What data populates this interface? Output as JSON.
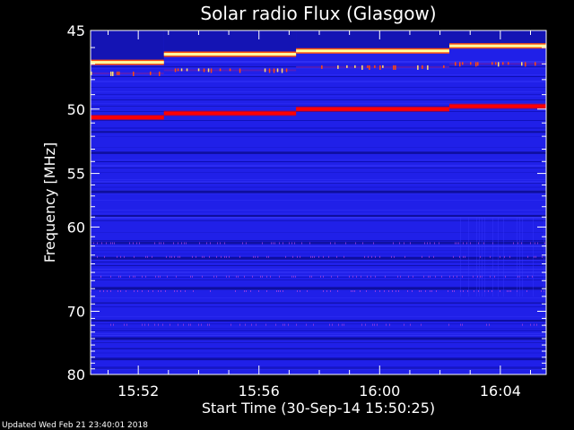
{
  "chart_data": {
    "type": "heatmap",
    "title": "Solar radio Flux (Glasgow)",
    "xlabel": "Start Time (30-Sep-14 15:50:25)",
    "ylabel": "Frequency [MHz]",
    "x_range_minutes": [
      0,
      15.1
    ],
    "ylim": [
      45,
      80
    ],
    "y_ticks": [
      45,
      50,
      55,
      60,
      70,
      80
    ],
    "x_ticks": [
      {
        "label": "15:52",
        "minute": 1.58
      },
      {
        "label": "15:56",
        "minute": 5.58
      },
      {
        "label": "16:00",
        "minute": 9.58
      },
      {
        "label": "16:04",
        "minute": 13.58
      }
    ],
    "segment_starts_minutes": [
      0,
      2.43,
      6.81,
      11.89
    ],
    "bands": [
      {
        "name": "bright",
        "mhz": [
          46.9,
          46.4,
          46.2,
          45.9
        ],
        "color": "#ffffa0"
      },
      {
        "name": "speckle",
        "mhz": [
          47.6,
          47.4,
          47.2,
          47.0
        ],
        "color": "#ff4a10"
      },
      {
        "name": "line",
        "mhz": [
          50.6,
          50.3,
          50.0,
          49.8
        ],
        "color": "#ff0000"
      }
    ],
    "colors": {
      "background": "#2020e8",
      "dark": "#0c0c90"
    }
  },
  "footer": {
    "updated": "Updated Wed Feb 21 23:40:01 2018"
  }
}
